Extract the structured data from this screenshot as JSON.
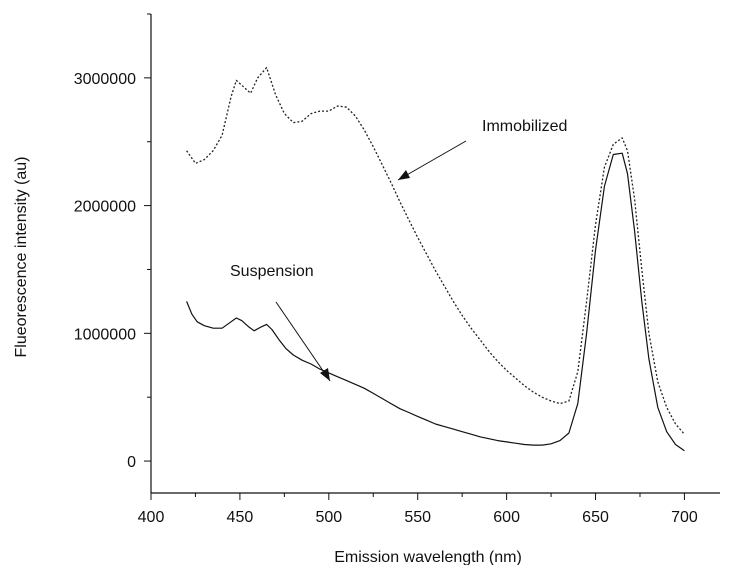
{
  "chart_data": {
    "type": "line",
    "title": "",
    "xlabel": "Emission wavelength (nm)",
    "ylabel": "Flueorescence intensity (au)",
    "xlim": [
      400,
      720
    ],
    "ylim": [
      -250000,
      3500000
    ],
    "xticks": [
      400,
      450,
      500,
      550,
      600,
      650,
      700
    ],
    "yticks": [
      0,
      1000000,
      2000000,
      3000000
    ],
    "xtick_labels": [
      "400",
      "450",
      "500",
      "550",
      "600",
      "650",
      "700"
    ],
    "ytick_labels": [
      "0",
      "1000000",
      "2000000",
      "3000000"
    ],
    "grid": false,
    "legend": "none",
    "series": [
      {
        "style": "dotted",
        "color": "#222222",
        "x": [
          420,
          425,
          430,
          435,
          440,
          445,
          448,
          452,
          456,
          460,
          465,
          470,
          475,
          480,
          485,
          490,
          495,
          500,
          505,
          510,
          515,
          520,
          525,
          530,
          535,
          540,
          545,
          550,
          555,
          560,
          565,
          570,
          575,
          580,
          585,
          590,
          595,
          600,
          605,
          610,
          615,
          620,
          625,
          630,
          635,
          640,
          645,
          650,
          655,
          660,
          665,
          668,
          672,
          676,
          680,
          685,
          690,
          695,
          700
        ],
        "y": [
          2430000,
          2330000,
          2360000,
          2430000,
          2550000,
          2850000,
          2980000,
          2930000,
          2880000,
          3000000,
          3080000,
          2870000,
          2720000,
          2650000,
          2660000,
          2720000,
          2740000,
          2740000,
          2780000,
          2770000,
          2700000,
          2590000,
          2460000,
          2320000,
          2180000,
          2030000,
          1890000,
          1750000,
          1620000,
          1490000,
          1370000,
          1250000,
          1140000,
          1040000,
          950000,
          860000,
          780000,
          710000,
          650000,
          590000,
          540000,
          500000,
          470000,
          450000,
          470000,
          700000,
          1250000,
          1850000,
          2300000,
          2480000,
          2530000,
          2430000,
          2050000,
          1500000,
          1000000,
          620000,
          420000,
          290000,
          210000
        ]
      },
      {
        "style": "solid",
        "color": "#111111",
        "x": [
          420,
          423,
          426,
          430,
          435,
          440,
          445,
          448,
          451,
          455,
          458,
          462,
          465,
          468,
          472,
          476,
          480,
          485,
          490,
          495,
          500,
          505,
          510,
          515,
          520,
          525,
          530,
          535,
          540,
          545,
          550,
          555,
          560,
          565,
          570,
          575,
          580,
          585,
          590,
          595,
          600,
          605,
          610,
          615,
          620,
          625,
          630,
          635,
          640,
          645,
          650,
          655,
          660,
          665,
          668,
          672,
          676,
          680,
          685,
          690,
          695,
          700
        ],
        "y": [
          1250000,
          1150000,
          1090000,
          1060000,
          1040000,
          1040000,
          1090000,
          1120000,
          1100000,
          1050000,
          1020000,
          1050000,
          1070000,
          1030000,
          950000,
          880000,
          830000,
          790000,
          760000,
          720000,
          690000,
          660000,
          630000,
          600000,
          570000,
          530000,
          490000,
          450000,
          410000,
          380000,
          350000,
          320000,
          290000,
          270000,
          250000,
          230000,
          210000,
          190000,
          175000,
          160000,
          150000,
          140000,
          130000,
          125000,
          125000,
          135000,
          160000,
          220000,
          450000,
          1000000,
          1650000,
          2150000,
          2400000,
          2410000,
          2250000,
          1800000,
          1250000,
          800000,
          420000,
          230000,
          130000,
          80000
        ]
      }
    ],
    "annotations": [
      {
        "text": "Immobilized"
      },
      {
        "text": "Suspension"
      }
    ]
  }
}
